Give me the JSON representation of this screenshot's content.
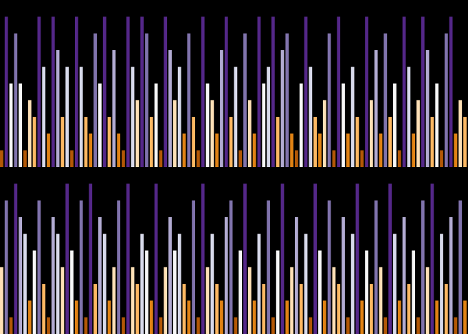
{
  "chart_data": [
    {
      "type": "bar",
      "ylim": [
        0,
        10
      ],
      "colormap": [
        "#b35806",
        "#e08214",
        "#fdb863",
        "#fee0b6",
        "#f7f7f7",
        "#d8daeb",
        "#b2abd2",
        "#8073ac",
        "#542788"
      ],
      "values": [
        1,
        9,
        5,
        8,
        5,
        1,
        4,
        3,
        9,
        6,
        2,
        9,
        7,
        3,
        6,
        1,
        9,
        6,
        3,
        2,
        8,
        5,
        9,
        3,
        7,
        2,
        1,
        9,
        6,
        4,
        9,
        8,
        3,
        5,
        1,
        9,
        7,
        4,
        6,
        2,
        8,
        3,
        1,
        9,
        5,
        4,
        2,
        7,
        9,
        3,
        6,
        1,
        8,
        4,
        2,
        9,
        5,
        6,
        9,
        3,
        7,
        8,
        2,
        1,
        5,
        9,
        6,
        3,
        2,
        4,
        8,
        1,
        9,
        5,
        2,
        6,
        3,
        1,
        9,
        4,
        7,
        2,
        8,
        3,
        5,
        1,
        9,
        6,
        2,
        4,
        9,
        7,
        3,
        5,
        1,
        8,
        9,
        2,
        4,
        3
      ],
      "series_gap": 0.3
    },
    {
      "type": "bar",
      "ylim": [
        0,
        10
      ],
      "colormap": [
        "#b35806",
        "#e08214",
        "#fdb863",
        "#fee0b6",
        "#f7f7f7",
        "#d8daeb",
        "#b2abd2",
        "#8073ac",
        "#542788"
      ],
      "values": [
        4,
        8,
        1,
        9,
        7,
        6,
        2,
        5,
        8,
        3,
        1,
        7,
        6,
        4,
        9,
        5,
        2,
        8,
        1,
        9,
        3,
        7,
        6,
        2,
        4,
        8,
        1,
        9,
        4,
        3,
        6,
        5,
        2,
        9,
        1,
        4,
        7,
        5,
        6,
        3,
        2,
        8,
        1,
        9,
        4,
        6,
        3,
        2,
        7,
        8,
        1,
        5,
        9,
        4,
        2,
        6,
        3,
        8,
        1,
        5,
        9,
        2,
        4,
        7,
        3,
        6,
        1,
        9,
        5,
        2,
        8,
        4,
        3,
        7,
        1,
        6,
        9,
        2,
        5,
        3,
        8,
        4,
        1,
        9,
        6,
        2,
        7,
        3,
        5,
        1,
        8,
        4,
        9,
        2,
        6,
        3,
        7,
        1,
        8,
        2
      ],
      "series_gap": 0.3
    }
  ]
}
